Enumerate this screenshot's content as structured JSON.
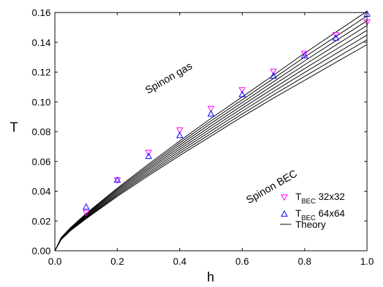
{
  "chart_data": {
    "type": "scatter",
    "xlabel": "h",
    "ylabel": "T",
    "xlim": [
      0,
      1
    ],
    "ylim": [
      0,
      0.16
    ],
    "x_ticks": [
      "0.0",
      "0.2",
      "0.4",
      "0.6",
      "0.8",
      "1.0"
    ],
    "y_ticks": [
      "0.00",
      "0.02",
      "0.04",
      "0.06",
      "0.08",
      "0.10",
      "0.12",
      "0.14",
      "0.16"
    ],
    "grid": false,
    "legend_position": "bottom-right",
    "annotations": [
      {
        "text": "Spinon gas",
        "x": 0.37,
        "y": 0.114,
        "rotation": -30
      },
      {
        "text": "Spinon BEC",
        "x": 0.7,
        "y": 0.041,
        "rotation": -30
      }
    ],
    "series": [
      {
        "name": "T",
        "subscript": "BEC",
        "suffix": " 32x32",
        "marker": "triangle-down",
        "color": "#ff00ff",
        "x": [
          0.1,
          0.2,
          0.3,
          0.4,
          0.5,
          0.6,
          0.7,
          0.8,
          0.9,
          1.0
        ],
        "y": [
          0.0255,
          0.0475,
          0.066,
          0.081,
          0.0955,
          0.108,
          0.1205,
          0.1325,
          0.145,
          0.1535
        ]
      },
      {
        "name": "T",
        "subscript": "BEC",
        "suffix": " 64x64",
        "marker": "triangle-up",
        "color": "#0000ff",
        "x": [
          0.1,
          0.2,
          0.3,
          0.4,
          0.5,
          0.6,
          0.7,
          0.8,
          0.9,
          1.0
        ],
        "y": [
          0.0295,
          0.0475,
          0.0635,
          0.0775,
          0.092,
          0.105,
          0.1175,
          0.131,
          0.143,
          0.159
        ]
      }
    ],
    "theory": {
      "name": "Theory",
      "color": "#000000",
      "x": [
        0.0,
        0.02,
        0.05,
        0.1,
        0.2,
        0.3,
        0.4,
        0.5,
        0.6,
        0.7,
        0.8,
        0.9,
        1.0
      ],
      "curves": [
        [
          0.0,
          0.0075,
          0.0135,
          0.0215,
          0.0365,
          0.0505,
          0.064,
          0.077,
          0.09,
          0.1025,
          0.1145,
          0.1265,
          0.1385
        ],
        [
          0.0,
          0.0077,
          0.0138,
          0.022,
          0.0373,
          0.0516,
          0.0654,
          0.0787,
          0.0919,
          0.1047,
          0.1171,
          0.1294,
          0.1417
        ],
        [
          0.0,
          0.0079,
          0.0141,
          0.0225,
          0.0381,
          0.0527,
          0.0668,
          0.0804,
          0.0938,
          0.1069,
          0.1197,
          0.1323,
          0.1449
        ],
        [
          0.0,
          0.0081,
          0.0144,
          0.023,
          0.0389,
          0.0538,
          0.0682,
          0.0821,
          0.0957,
          0.1091,
          0.1223,
          0.1352,
          0.1481
        ],
        [
          0.0,
          0.0083,
          0.0147,
          0.0235,
          0.0397,
          0.0549,
          0.0696,
          0.0838,
          0.0976,
          0.1113,
          0.1249,
          0.1381,
          0.1513
        ],
        [
          0.0,
          0.0085,
          0.015,
          0.024,
          0.0405,
          0.056,
          0.071,
          0.0855,
          0.0995,
          0.1135,
          0.1275,
          0.141,
          0.1545
        ],
        [
          0.0,
          0.0087,
          0.0153,
          0.0245,
          0.0413,
          0.0571,
          0.0724,
          0.0872,
          0.1014,
          0.1157,
          0.1301,
          0.1439,
          0.1577
        ],
        [
          0.0,
          0.0089,
          0.0156,
          0.025,
          0.0421,
          0.0582,
          0.0738,
          0.0889,
          0.1033,
          0.1179,
          0.1327,
          0.1468,
          0.1609
        ]
      ]
    }
  }
}
